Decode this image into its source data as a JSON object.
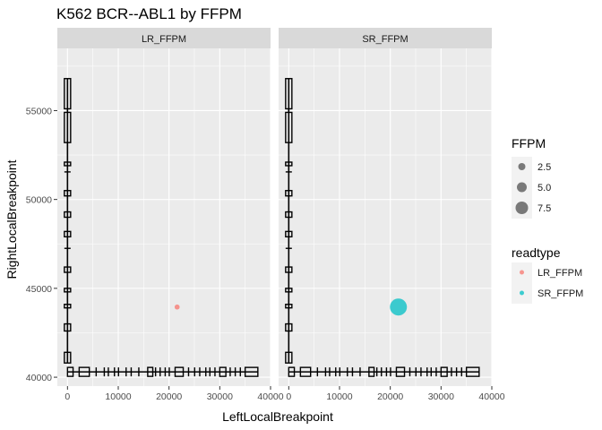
{
  "chart_data": {
    "type": "scatter",
    "title": "K562 BCR--ABL1 by FFPM",
    "xlabel": "LeftLocalBreakpoint",
    "ylabel": "RightLocalBreakpoint",
    "xlim": [
      -2000,
      40000
    ],
    "ylim": [
      39500,
      58500
    ],
    "x_ticks": [
      0,
      10000,
      20000,
      30000,
      40000
    ],
    "x_tick_labels": [
      "0",
      "10000",
      "20000",
      "30000",
      "40000"
    ],
    "y_ticks": [
      40000,
      45000,
      50000,
      55000
    ],
    "y_tick_labels": [
      "40000",
      "45000",
      "50000",
      "55000"
    ],
    "grid": true,
    "facets": [
      "LR_FFPM",
      "SR_FFPM"
    ],
    "left_gene_exons": [
      [
        0,
        1100
      ],
      [
        2300,
        4300
      ],
      [
        5600,
        5700
      ],
      [
        7200,
        7300
      ],
      [
        8000,
        8100
      ],
      [
        9200,
        9300
      ],
      [
        10000,
        10100
      ],
      [
        11500,
        11600
      ],
      [
        12500,
        12600
      ],
      [
        14000,
        14100
      ],
      [
        15800,
        16800
      ],
      [
        17300,
        17400
      ],
      [
        18200,
        18300
      ],
      [
        19200,
        19300
      ],
      [
        20000,
        20100
      ],
      [
        21200,
        22800
      ],
      [
        23800,
        23900
      ],
      [
        25000,
        25100
      ],
      [
        26000,
        26100
      ],
      [
        27200,
        27300
      ],
      [
        28000,
        28100
      ],
      [
        29000,
        29100
      ],
      [
        30000,
        31200
      ],
      [
        32000,
        32100
      ],
      [
        33000,
        33100
      ],
      [
        34000,
        34100
      ],
      [
        35000,
        37500
      ]
    ],
    "right_gene_exons": [
      [
        40800,
        41400
      ],
      [
        42600,
        43000
      ],
      [
        43900,
        44100
      ],
      [
        44800,
        45000
      ],
      [
        45900,
        46200
      ],
      [
        47200,
        47300
      ],
      [
        47900,
        48200
      ],
      [
        49000,
        49300
      ],
      [
        50200,
        50500
      ],
      [
        51500,
        51600
      ],
      [
        51900,
        52100
      ],
      [
        53200,
        54900
      ],
      [
        55100,
        56800
      ]
    ],
    "series": [
      {
        "name": "LR_FFPM",
        "facet": "LR_FFPM",
        "color": "#F8766D",
        "points": [
          {
            "x": 21600,
            "y": 43950,
            "FFPM": 0.1
          }
        ]
      },
      {
        "name": "SR_FFPM",
        "facet": "SR_FFPM",
        "color": "#00BFC4",
        "points": [
          {
            "x": 21600,
            "y": 43950,
            "FFPM": 8.5
          }
        ]
      }
    ],
    "legend": {
      "position": "right",
      "size_title": "FFPM",
      "size_breaks": [
        2.5,
        5.0,
        7.5
      ],
      "size_labels": [
        "2.5",
        "5.0",
        "7.5"
      ],
      "color_title": "readtype",
      "color_entries": [
        {
          "label": "LR_FFPM",
          "color": "#F8766D"
        },
        {
          "label": "SR_FFPM",
          "color": "#00BFC4"
        }
      ]
    }
  }
}
